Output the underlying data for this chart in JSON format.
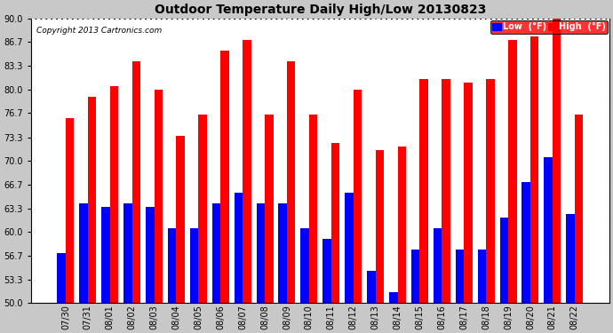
{
  "title": "Outdoor Temperature Daily High/Low 20130823",
  "copyright": "Copyright 2013 Cartronics.com",
  "legend_low": "Low  (°F)",
  "legend_high": "High  (°F)",
  "low_color": "#0000ff",
  "high_color": "#ff0000",
  "bg_color": "#c8c8c8",
  "plot_bg_color": "#ffffff",
  "grid_color": "#ffffff",
  "dates": [
    "07/30",
    "07/31",
    "08/01",
    "08/02",
    "08/03",
    "08/04",
    "08/05",
    "08/06",
    "08/07",
    "08/08",
    "08/09",
    "08/10",
    "08/11",
    "08/12",
    "08/13",
    "08/14",
    "08/15",
    "08/16",
    "08/17",
    "08/18",
    "08/19",
    "08/20",
    "08/21",
    "08/22"
  ],
  "highs": [
    76.0,
    79.0,
    80.5,
    84.0,
    80.0,
    73.5,
    76.5,
    85.5,
    87.0,
    76.5,
    84.0,
    76.5,
    72.5,
    80.0,
    71.5,
    72.0,
    81.5,
    81.5,
    81.0,
    81.5,
    87.0,
    87.5,
    90.0,
    76.5
  ],
  "lows": [
    57.0,
    64.0,
    63.5,
    64.0,
    63.5,
    60.5,
    60.5,
    64.0,
    65.5,
    64.0,
    64.0,
    60.5,
    59.0,
    65.5,
    54.5,
    51.5,
    57.5,
    60.5,
    57.5,
    57.5,
    62.0,
    67.0,
    70.5,
    62.5
  ],
  "ylim": [
    50.0,
    90.0
  ],
  "ybase": 50.0,
  "yticks": [
    50.0,
    53.3,
    56.7,
    60.0,
    63.3,
    66.7,
    70.0,
    73.3,
    76.7,
    80.0,
    83.3,
    86.7,
    90.0
  ],
  "bar_width": 0.38,
  "figwidth": 6.9,
  "figheight": 3.75,
  "dpi": 100
}
